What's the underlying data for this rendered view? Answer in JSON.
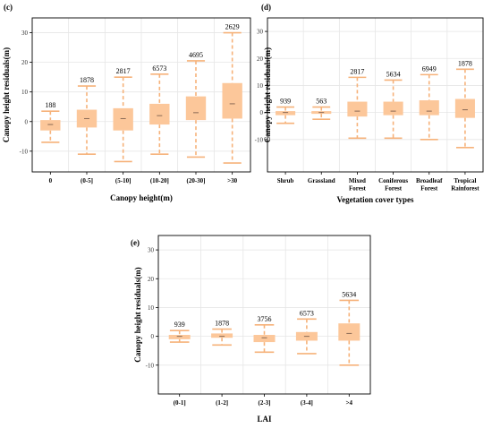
{
  "chart_data": [
    {
      "id": "c",
      "panel_label": "(c)",
      "type": "box",
      "xlabel": "Canopy height(m)",
      "ylabel": "Canopy height residuals(m)",
      "ylim": [
        -17,
        35
      ],
      "yticks": [
        -10,
        0,
        10,
        20,
        30
      ],
      "grid": true,
      "categories": [
        "0",
        "(0-5]",
        "(5-10]",
        "(10-20]",
        "(20-30]",
        ">30"
      ],
      "series": [
        {
          "category": "0",
          "count": "188",
          "whisker_low": -7,
          "q1": -3,
          "median": -1,
          "q3": 0.5,
          "whisker_high": 3.5
        },
        {
          "category": "(0-5]",
          "count": "1878",
          "whisker_low": -11,
          "q1": -2,
          "median": 1,
          "q3": 4,
          "whisker_high": 12
        },
        {
          "category": "(5-10]",
          "count": "2817",
          "whisker_low": -13.5,
          "q1": -3,
          "median": 1,
          "q3": 4.5,
          "whisker_high": 15
        },
        {
          "category": "(10-20]",
          "count": "6573",
          "whisker_low": -11,
          "q1": -1,
          "median": 2,
          "q3": 6,
          "whisker_high": 16
        },
        {
          "category": "(20-30]",
          "count": "4695",
          "whisker_low": -12,
          "q1": 0.5,
          "median": 3,
          "q3": 8.5,
          "whisker_high": 20.5
        },
        {
          "category": ">30",
          "count": "2629",
          "whisker_low": -14,
          "q1": 1,
          "median": 6,
          "q3": 13,
          "whisker_high": 30
        }
      ]
    },
    {
      "id": "d",
      "panel_label": "(d)",
      "type": "box",
      "xlabel": "Vegetation cover types",
      "ylabel": "Canopy height residuals(m)",
      "ylim": [
        -22,
        35
      ],
      "yticks": [
        -10,
        0,
        10,
        20,
        30
      ],
      "grid": true,
      "categories": [
        "Shrub",
        "Grassland",
        "Mixed Forest",
        "Coniferous Forest",
        "Broadleaf Forest",
        "Tropical Rainforest"
      ],
      "category_lines": [
        [
          "Shrub"
        ],
        [
          "Grassland"
        ],
        [
          "Mixed",
          "Forest"
        ],
        [
          "Coniferous",
          "Forest"
        ],
        [
          "Broadleaf",
          "Forest"
        ],
        [
          "Tropical",
          "Rainforest"
        ]
      ],
      "series": [
        {
          "category": "Shrub",
          "count": "939",
          "whisker_low": -4,
          "q1": -1,
          "median": 0,
          "q3": 0.5,
          "whisker_high": 2
        },
        {
          "category": "Grassland",
          "count": "563",
          "whisker_low": -2.5,
          "q1": -0.5,
          "median": 0,
          "q3": 0.5,
          "whisker_high": 2
        },
        {
          "category": "Mixed Forest",
          "count": "2817",
          "whisker_low": -9.5,
          "q1": -1.5,
          "median": 0.5,
          "q3": 4,
          "whisker_high": 13
        },
        {
          "category": "Coniferous Forest",
          "count": "5634",
          "whisker_low": -9.5,
          "q1": -1,
          "median": 0.5,
          "q3": 4,
          "whisker_high": 12
        },
        {
          "category": "Broadleaf Forest",
          "count": "6949",
          "whisker_low": -10,
          "q1": -1,
          "median": 0.5,
          "q3": 4.5,
          "whisker_high": 14
        },
        {
          "category": "Tropical Rainforest",
          "count": "1878",
          "whisker_low": -13,
          "q1": -2,
          "median": 1,
          "q3": 5,
          "whisker_high": 16
        }
      ]
    },
    {
      "id": "e",
      "panel_label": "(e)",
      "type": "box",
      "xlabel": "LAI",
      "ylabel": "Canopy height residuals(m)",
      "ylim": [
        -20,
        35
      ],
      "yticks": [
        -10,
        0,
        10,
        20,
        30
      ],
      "grid": true,
      "categories": [
        "(0-1]",
        "(1-2]",
        "(2-3]",
        "(3-4]",
        ">4"
      ],
      "series": [
        {
          "category": "(0-1]",
          "count": "939",
          "whisker_low": -2,
          "q1": -1,
          "median": 0,
          "q3": 0.5,
          "whisker_high": 2
        },
        {
          "category": "(1-2]",
          "count": "1878",
          "whisker_low": -3,
          "q1": -0.5,
          "median": 0,
          "q3": 1,
          "whisker_high": 2.5
        },
        {
          "category": "(2-3]",
          "count": "3756",
          "whisker_low": -5.5,
          "q1": -2,
          "median": -0.5,
          "q3": 0.5,
          "whisker_high": 4
        },
        {
          "category": "(3-4]",
          "count": "6573",
          "whisker_low": -6,
          "q1": -1.5,
          "median": 0,
          "q3": 1.5,
          "whisker_high": 6
        },
        {
          "category": ">4",
          "count": "5634",
          "whisker_low": -10,
          "q1": -1.5,
          "median": 1,
          "q3": 4.5,
          "whisker_high": 12.5
        }
      ]
    }
  ],
  "colors": {
    "box_fill": "#fcc79a",
    "whisker": "#f6b27a",
    "median": "#8a6a55",
    "grid": "#e6e6e6",
    "axis": "#000000"
  }
}
